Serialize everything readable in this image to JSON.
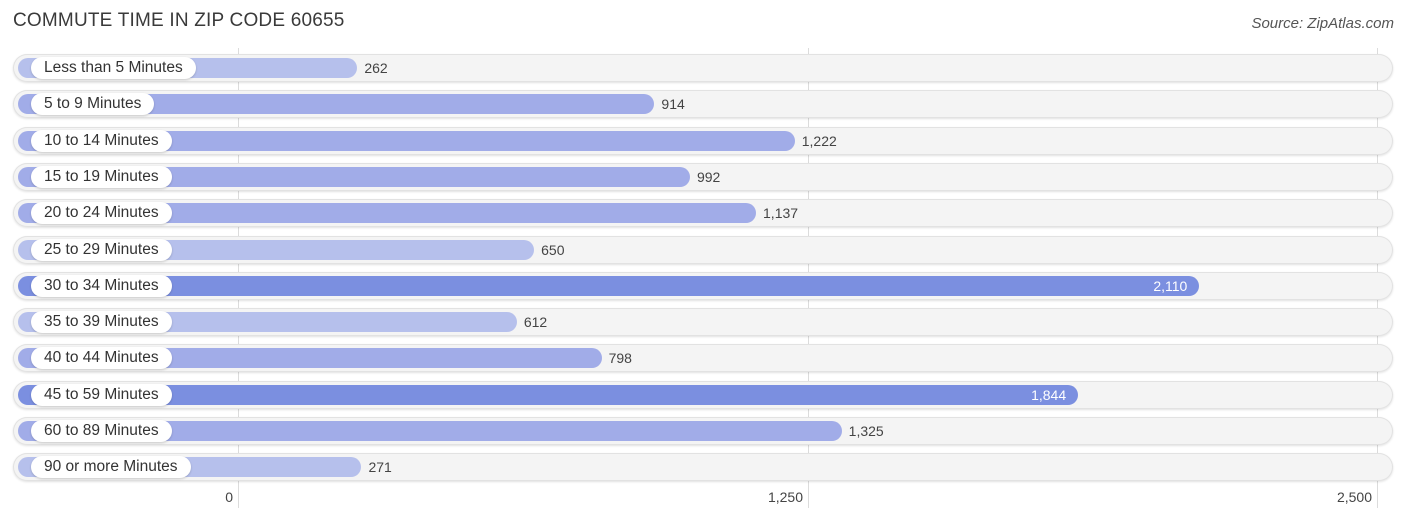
{
  "header": {
    "title": "COMMUTE TIME IN ZIP CODE 60655",
    "source": "Source: ZipAtlas.com"
  },
  "axis": {
    "ticks": [
      {
        "value": 0,
        "label": "0"
      },
      {
        "value": 1250,
        "label": "1,250"
      },
      {
        "value": 2500,
        "label": "2,500"
      }
    ]
  },
  "colors": {
    "bar_light": "#b6c0ec",
    "bar_mid": "#a1ace8",
    "bar_strong": "#7b8fe0",
    "track": "#f4f4f4"
  },
  "chart_data": {
    "type": "bar",
    "orientation": "horizontal",
    "title": "COMMUTE TIME IN ZIP CODE 60655",
    "source": "Source: ZipAtlas.com",
    "xlabel": "",
    "ylabel": "",
    "xlim": [
      0,
      2500
    ],
    "grid": true,
    "categories": [
      "Less than 5 Minutes",
      "5 to 9 Minutes",
      "10 to 14 Minutes",
      "15 to 19 Minutes",
      "20 to 24 Minutes",
      "25 to 29 Minutes",
      "30 to 34 Minutes",
      "35 to 39 Minutes",
      "40 to 44 Minutes",
      "45 to 59 Minutes",
      "60 to 89 Minutes",
      "90 or more Minutes"
    ],
    "values": [
      262,
      914,
      1222,
      992,
      1137,
      650,
      2110,
      612,
      798,
      1844,
      1325,
      271
    ],
    "value_labels": [
      "262",
      "914",
      "1,222",
      "992",
      "1,137",
      "650",
      "2,110",
      "612",
      "798",
      "1,844",
      "1,325",
      "271"
    ],
    "x_tick_labels": [
      "0",
      "1,250",
      "2,500"
    ]
  }
}
